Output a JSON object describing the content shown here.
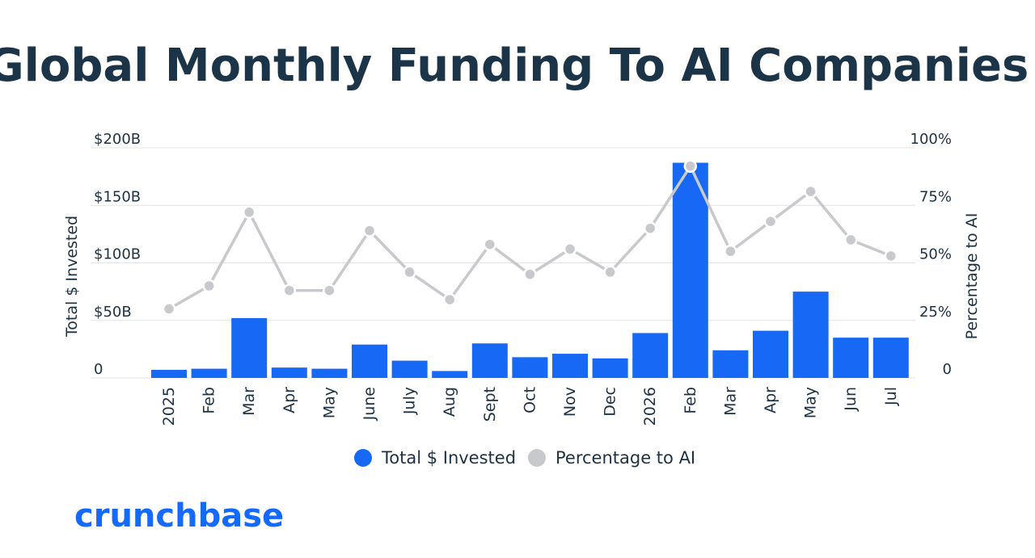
{
  "chart_data": {
    "type": "bar",
    "title": "Global Monthly Funding To AI Companies",
    "categories": [
      "2025",
      "Feb",
      "Mar",
      "Apr",
      "May",
      "June",
      "July",
      "Aug",
      "Sept",
      "Oct",
      "Nov",
      "Dec",
      "2026",
      "Feb",
      "Mar",
      "Apr",
      "May",
      "Jun",
      "Jul"
    ],
    "series": [
      {
        "name": "Total $ Invested",
        "type": "bar",
        "axis": "left",
        "color": "#1668f5",
        "values": [
          7,
          8,
          52,
          9,
          8,
          29,
          15,
          6,
          30,
          18,
          21,
          17,
          39,
          187,
          24,
          41,
          75,
          35,
          35
        ]
      },
      {
        "name": "Percentage to AI",
        "type": "line",
        "axis": "right",
        "color": "#c8c9cc",
        "values": [
          30,
          40,
          72,
          38,
          38,
          64,
          46,
          34,
          58,
          45,
          56,
          46,
          65,
          92,
          55,
          68,
          81,
          60,
          53
        ]
      }
    ],
    "y_left": {
      "label": "Total $ Invested",
      "ylim": [
        0,
        200
      ],
      "ticks": [
        0,
        50,
        100,
        150,
        200
      ],
      "tick_labels": [
        "0",
        "$50B",
        "$100B",
        "$150B",
        "$200B"
      ]
    },
    "y_right": {
      "label": "Percentage to AI",
      "ylim": [
        0,
        100
      ],
      "ticks": [
        0,
        25,
        50,
        75,
        100
      ],
      "tick_labels": [
        "0",
        "25%",
        "50%",
        "75%",
        "100%"
      ]
    },
    "grid": true,
    "legend": {
      "placement": "bottom-center",
      "entries": [
        "Total $ Invested",
        "Percentage to AI"
      ]
    }
  },
  "brand": "crunchbase"
}
